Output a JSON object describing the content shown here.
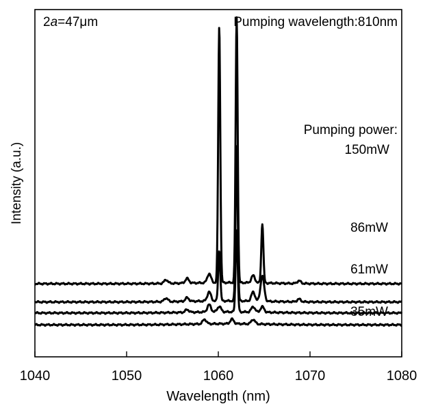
{
  "chart_data": {
    "type": "line",
    "xlabel": "Wavelength (nm)",
    "ylabel": "Intensity (a.u.)",
    "xlim": [
      1040,
      1080
    ],
    "x_ticks": [
      "1040",
      "1050",
      "1060",
      "1070",
      "1080"
    ],
    "y_ticks_shown": false,
    "annotations": {
      "diameter_prefix": "2",
      "diameter_var": "a",
      "diameter_value": "=47μm",
      "pump_wavelength": "Pumping wavelength:810nm",
      "pump_power_header": "Pumping power:"
    },
    "series": [
      {
        "name": "150mW",
        "baseline": 0.5,
        "peaks": [
          [
            1054.3,
            0.04
          ],
          [
            1056.6,
            0.05
          ],
          [
            1059.0,
            0.1
          ],
          [
            1060.1,
            2.8
          ],
          [
            1062.0,
            2.9
          ],
          [
            1063.8,
            0.08
          ],
          [
            1064.8,
            0.65
          ],
          [
            1068.8,
            0.03
          ]
        ]
      },
      {
        "name": "86mW",
        "baseline": 0.3,
        "peaks": [
          [
            1054.3,
            0.04
          ],
          [
            1056.6,
            0.04
          ],
          [
            1059.0,
            0.1
          ],
          [
            1060.1,
            0.55
          ],
          [
            1062.0,
            1.7
          ],
          [
            1063.8,
            0.1
          ],
          [
            1064.8,
            0.28
          ],
          [
            1068.8,
            0.03
          ]
        ]
      },
      {
        "name": "61mW",
        "baseline": 0.18,
        "peaks": [
          [
            1056.6,
            0.03
          ],
          [
            1059.0,
            0.08
          ],
          [
            1060.1,
            0.06
          ],
          [
            1062.0,
            0.9
          ],
          [
            1063.8,
            0.06
          ],
          [
            1064.8,
            0.06
          ]
        ]
      },
      {
        "name": "35mW",
        "baseline": 0.05,
        "peaks": [
          [
            1058.5,
            0.05
          ],
          [
            1061.5,
            0.05
          ],
          [
            1063.8,
            0.05
          ]
        ]
      }
    ],
    "legend": "inline labels on right"
  }
}
